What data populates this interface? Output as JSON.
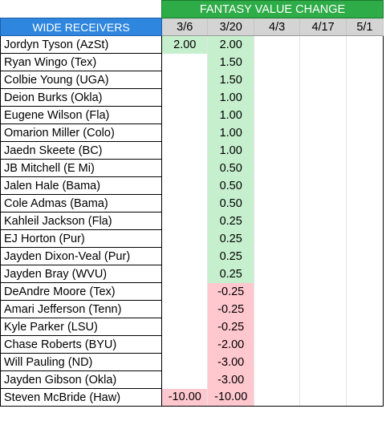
{
  "header": {
    "group_title": "FANTASY VALUE CHANGE",
    "position_label": "WIDE RECEIVERS",
    "dates": [
      "3/6",
      "3/20",
      "4/3",
      "4/17",
      "5/1"
    ]
  },
  "colors": {
    "header_green": "#2eac47",
    "header_blue": "#2e86de",
    "date_header_gray": "#d4d4d4",
    "positive_fill": "#c6efce",
    "negative_fill": "#ffc7ce"
  },
  "rows": [
    {
      "name": "Jordyn Tyson (AzSt)",
      "values": [
        "2.00",
        "2.00",
        "",
        "",
        ""
      ],
      "fills": [
        "pos",
        "pos",
        "",
        "",
        ""
      ]
    },
    {
      "name": "Ryan Wingo (Tex)",
      "values": [
        "",
        "1.50",
        "",
        "",
        ""
      ],
      "fills": [
        "",
        "pos",
        "",
        "",
        ""
      ]
    },
    {
      "name": "Colbie Young (UGA)",
      "values": [
        "",
        "1.50",
        "",
        "",
        ""
      ],
      "fills": [
        "",
        "pos",
        "",
        "",
        ""
      ]
    },
    {
      "name": "Deion Burks (Okla)",
      "values": [
        "",
        "1.00",
        "",
        "",
        ""
      ],
      "fills": [
        "",
        "pos",
        "",
        "",
        ""
      ]
    },
    {
      "name": "Eugene Wilson (Fla)",
      "values": [
        "",
        "1.00",
        "",
        "",
        ""
      ],
      "fills": [
        "",
        "pos",
        "",
        "",
        ""
      ]
    },
    {
      "name": "Omarion Miller (Colo)",
      "values": [
        "",
        "1.00",
        "",
        "",
        ""
      ],
      "fills": [
        "",
        "pos",
        "",
        "",
        ""
      ]
    },
    {
      "name": "Jaedn Skeete (BC)",
      "values": [
        "",
        "1.00",
        "",
        "",
        ""
      ],
      "fills": [
        "",
        "pos",
        "",
        "",
        ""
      ]
    },
    {
      "name": "JB Mitchell (E Mi)",
      "values": [
        "",
        "0.50",
        "",
        "",
        ""
      ],
      "fills": [
        "",
        "pos",
        "",
        "",
        ""
      ]
    },
    {
      "name": "Jalen Hale (Bama)",
      "values": [
        "",
        "0.50",
        "",
        "",
        ""
      ],
      "fills": [
        "",
        "pos",
        "",
        "",
        ""
      ]
    },
    {
      "name": "Cole Admas (Bama)",
      "values": [
        "",
        "0.50",
        "",
        "",
        ""
      ],
      "fills": [
        "",
        "pos",
        "",
        "",
        ""
      ]
    },
    {
      "name": "Kahleil Jackson (Fla)",
      "values": [
        "",
        "0.25",
        "",
        "",
        ""
      ],
      "fills": [
        "",
        "pos",
        "",
        "",
        ""
      ]
    },
    {
      "name": "EJ Horton (Pur)",
      "values": [
        "",
        "0.25",
        "",
        "",
        ""
      ],
      "fills": [
        "",
        "pos",
        "",
        "",
        ""
      ]
    },
    {
      "name": "Jayden Dixon-Veal (Pur)",
      "values": [
        "",
        "0.25",
        "",
        "",
        ""
      ],
      "fills": [
        "",
        "pos",
        "",
        "",
        ""
      ]
    },
    {
      "name": "Jayden Bray (WVU)",
      "values": [
        "",
        "0.25",
        "",
        "",
        ""
      ],
      "fills": [
        "",
        "pos",
        "",
        "",
        ""
      ]
    },
    {
      "name": "DeAndre Moore (Tex)",
      "values": [
        "",
        "-0.25",
        "",
        "",
        ""
      ],
      "fills": [
        "",
        "neg",
        "",
        "",
        ""
      ]
    },
    {
      "name": "Amari Jefferson (Tenn)",
      "values": [
        "",
        "-0.25",
        "",
        "",
        ""
      ],
      "fills": [
        "",
        "neg",
        "",
        "",
        ""
      ]
    },
    {
      "name": "Kyle Parker (LSU)",
      "values": [
        "",
        "-0.25",
        "",
        "",
        ""
      ],
      "fills": [
        "",
        "neg",
        "",
        "",
        ""
      ]
    },
    {
      "name": "Chase Roberts (BYU)",
      "values": [
        "",
        "-2.00",
        "",
        "",
        ""
      ],
      "fills": [
        "",
        "neg",
        "",
        "",
        ""
      ]
    },
    {
      "name": "Will Pauling (ND)",
      "values": [
        "",
        "-3.00",
        "",
        "",
        ""
      ],
      "fills": [
        "",
        "neg",
        "",
        "",
        ""
      ]
    },
    {
      "name": "Jayden Gibson (Okla)",
      "values": [
        "",
        "-3.00",
        "",
        "",
        ""
      ],
      "fills": [
        "",
        "neg",
        "",
        "",
        ""
      ]
    },
    {
      "name": "Steven McBride (Haw)",
      "values": [
        "-10.00",
        "-10.00",
        "",
        "",
        ""
      ],
      "fills": [
        "neg",
        "neg",
        "",
        "",
        ""
      ]
    }
  ]
}
